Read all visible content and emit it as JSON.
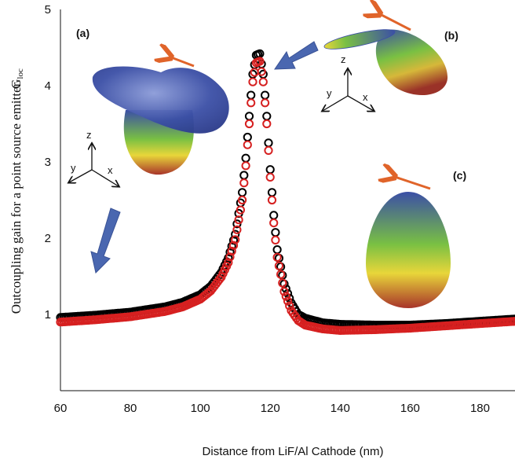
{
  "chart_data": {
    "type": "scatter",
    "title": "",
    "xlabel": "Distance from LiF/Al Cathode (nm)",
    "ylabel": "Outcoupling gain for a point source emitter",
    "ylabel_symbol": "G",
    "ylabel_symbol_sub": "loc",
    "xlim": [
      60,
      190
    ],
    "ylim": [
      0,
      5
    ],
    "x_ticks": [
      60,
      80,
      100,
      120,
      140,
      160,
      180
    ],
    "y_ticks": [
      1,
      2,
      3,
      4,
      5
    ],
    "grid": false,
    "legend": "none",
    "series": [
      {
        "color": "#000000",
        "marker": "open-circle",
        "points": [
          [
            60,
            0.96
          ],
          [
            70,
            0.99
          ],
          [
            80,
            1.03
          ],
          [
            90,
            1.1
          ],
          [
            95,
            1.16
          ],
          [
            100,
            1.26
          ],
          [
            103,
            1.37
          ],
          [
            106,
            1.55
          ],
          [
            108,
            1.74
          ],
          [
            110,
            2.05
          ],
          [
            112,
            2.6
          ],
          [
            113,
            3.05
          ],
          [
            114,
            3.6
          ],
          [
            115,
            4.15
          ],
          [
            116,
            4.4
          ],
          [
            117,
            4.42
          ],
          [
            118,
            4.15
          ],
          [
            119,
            3.6
          ],
          [
            120,
            2.9
          ],
          [
            121,
            2.3
          ],
          [
            122,
            1.85
          ],
          [
            124,
            1.4
          ],
          [
            126,
            1.15
          ],
          [
            128,
            1.0
          ],
          [
            130,
            0.95
          ],
          [
            135,
            0.89
          ],
          [
            140,
            0.87
          ],
          [
            150,
            0.86
          ],
          [
            160,
            0.86
          ],
          [
            170,
            0.88
          ],
          [
            180,
            0.91
          ],
          [
            190,
            0.94
          ]
        ]
      },
      {
        "color": "#d62020",
        "marker": "open-circle",
        "points": [
          [
            60,
            0.9
          ],
          [
            70,
            0.93
          ],
          [
            80,
            0.97
          ],
          [
            90,
            1.04
          ],
          [
            95,
            1.1
          ],
          [
            100,
            1.2
          ],
          [
            103,
            1.31
          ],
          [
            106,
            1.49
          ],
          [
            108,
            1.68
          ],
          [
            110,
            1.98
          ],
          [
            112,
            2.5
          ],
          [
            113,
            2.95
          ],
          [
            114,
            3.5
          ],
          [
            115,
            4.05
          ],
          [
            116,
            4.3
          ],
          [
            117,
            4.32
          ],
          [
            118,
            4.05
          ],
          [
            119,
            3.5
          ],
          [
            120,
            2.8
          ],
          [
            121,
            2.2
          ],
          [
            122,
            1.75
          ],
          [
            124,
            1.3
          ],
          [
            126,
            1.05
          ],
          [
            128,
            0.92
          ],
          [
            130,
            0.86
          ],
          [
            135,
            0.81
          ],
          [
            140,
            0.79
          ],
          [
            150,
            0.8
          ],
          [
            160,
            0.82
          ],
          [
            170,
            0.85
          ],
          [
            180,
            0.88
          ],
          [
            190,
            0.91
          ]
        ]
      }
    ],
    "annotations": {
      "panel_labels": [
        "(a)",
        "(b)",
        "(c)"
      ],
      "axis_triad_labels": [
        "z",
        "y",
        "x"
      ]
    },
    "colors": {
      "arrow_blue": "#4a67b0",
      "arrow_orange": "#e0642a",
      "lobe_blue": "#3b4fa6",
      "lobe_green": "#79c043",
      "lobe_yellow": "#e8d63a",
      "lobe_red": "#a8342a"
    }
  }
}
